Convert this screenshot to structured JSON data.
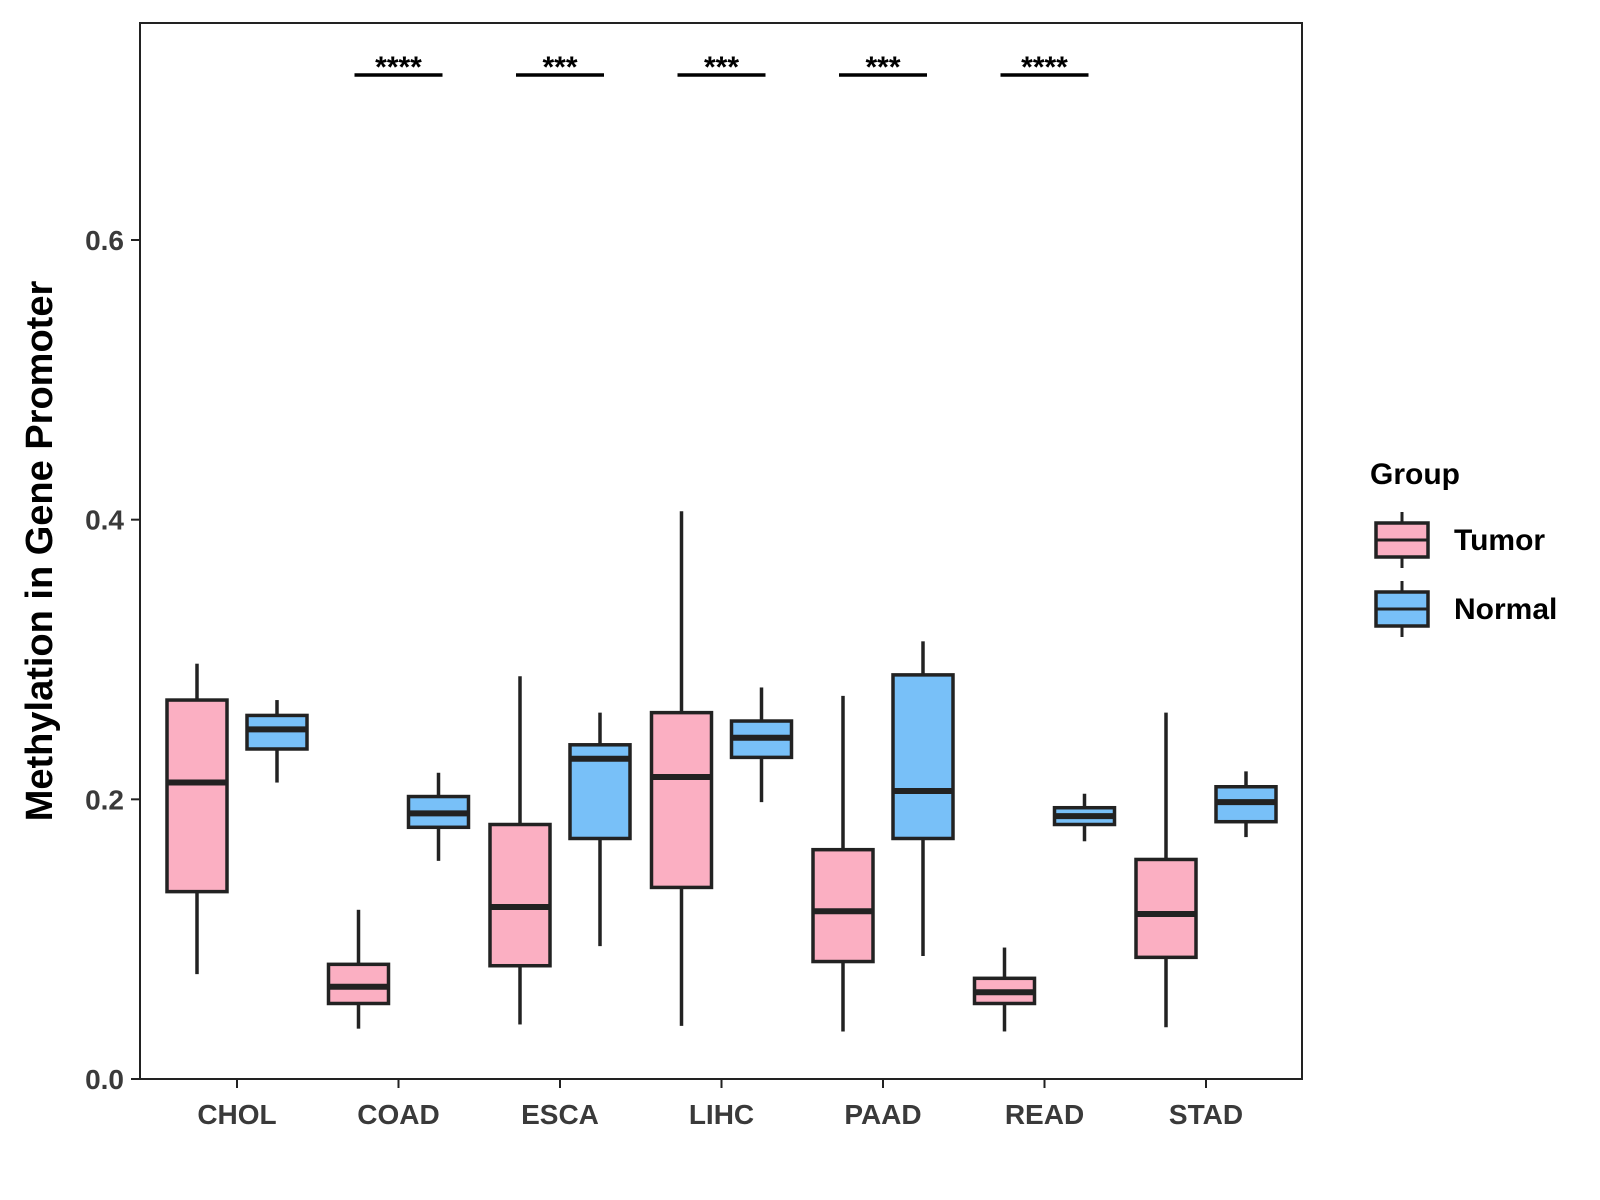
{
  "chart_data": {
    "type": "boxplot",
    "title": "",
    "xlabel": "",
    "ylabel": "Methylation in Gene Promoter",
    "ylim": [
      0,
      0.755
    ],
    "y_ticks": [
      0.0,
      0.2,
      0.4,
      0.6
    ],
    "y_tick_labels": [
      "0.0",
      "0.2",
      "0.4",
      "0.6"
    ],
    "categories": [
      "CHOL",
      "COAD",
      "ESCA",
      "LIHC",
      "PAAD",
      "READ",
      "STAD"
    ],
    "legend": {
      "title": "Group",
      "position": "right",
      "entries": [
        "Tumor",
        "Normal"
      ]
    },
    "series": [
      {
        "name": "Tumor",
        "color": "#FBAFC2",
        "boxes": [
          {
            "whisker_low": 0.075,
            "q1": 0.134,
            "median": 0.212,
            "q3": 0.271,
            "whisker_high": 0.297
          },
          {
            "whisker_low": 0.036,
            "q1": 0.054,
            "median": 0.066,
            "q3": 0.082,
            "whisker_high": 0.121
          },
          {
            "whisker_low": 0.039,
            "q1": 0.081,
            "median": 0.123,
            "q3": 0.182,
            "whisker_high": 0.288
          },
          {
            "whisker_low": 0.038,
            "q1": 0.137,
            "median": 0.216,
            "q3": 0.262,
            "whisker_high": 0.406
          },
          {
            "whisker_low": 0.034,
            "q1": 0.084,
            "median": 0.12,
            "q3": 0.164,
            "whisker_high": 0.274
          },
          {
            "whisker_low": 0.034,
            "q1": 0.054,
            "median": 0.062,
            "q3": 0.072,
            "whisker_high": 0.094
          },
          {
            "whisker_low": 0.037,
            "q1": 0.087,
            "median": 0.118,
            "q3": 0.157,
            "whisker_high": 0.262
          }
        ]
      },
      {
        "name": "Normal",
        "color": "#78C0F8",
        "boxes": [
          {
            "whisker_low": 0.212,
            "q1": 0.236,
            "median": 0.25,
            "q3": 0.26,
            "whisker_high": 0.271
          },
          {
            "whisker_low": 0.156,
            "q1": 0.18,
            "median": 0.19,
            "q3": 0.202,
            "whisker_high": 0.219
          },
          {
            "whisker_low": 0.095,
            "q1": 0.172,
            "median": 0.229,
            "q3": 0.239,
            "whisker_high": 0.262
          },
          {
            "whisker_low": 0.198,
            "q1": 0.23,
            "median": 0.244,
            "q3": 0.256,
            "whisker_high": 0.28
          },
          {
            "whisker_low": 0.088,
            "q1": 0.172,
            "median": 0.206,
            "q3": 0.289,
            "whisker_high": 0.313
          },
          {
            "whisker_low": 0.17,
            "q1": 0.182,
            "median": 0.188,
            "q3": 0.194,
            "whisker_high": 0.204
          },
          {
            "whisker_low": 0.173,
            "q1": 0.184,
            "median": 0.198,
            "q3": 0.209,
            "whisker_high": 0.22
          }
        ]
      }
    ],
    "annotations": [
      {
        "category": "COAD",
        "label": "****"
      },
      {
        "category": "ESCA",
        "label": "***"
      },
      {
        "category": "LIHC",
        "label": "***"
      },
      {
        "category": "PAAD",
        "label": "***"
      },
      {
        "category": "READ",
        "label": "****"
      }
    ]
  }
}
